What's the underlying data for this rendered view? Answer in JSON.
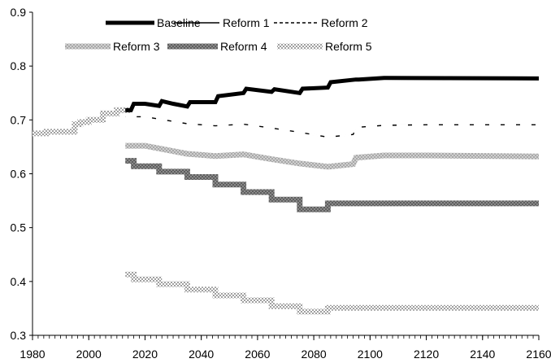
{
  "chart_data": {
    "type": "line",
    "xlim": [
      1980,
      2160
    ],
    "ylim": [
      0.3,
      0.9
    ],
    "x_ticks": [
      1980,
      2000,
      2020,
      2040,
      2060,
      2080,
      2100,
      2120,
      2140,
      2160
    ],
    "x_tick_labels": [
      "1980",
      "2000",
      "2020",
      "2040",
      "2060",
      "2080",
      "2100",
      "2120",
      "2140",
      "2160"
    ],
    "y_ticks": [
      0.3,
      0.4,
      0.5,
      0.6,
      0.7,
      0.8,
      0.9
    ],
    "y_tick_labels": [
      "0.3",
      "0.4",
      "0.5",
      "0.6",
      "0.7",
      "0.8",
      "0.9"
    ],
    "grid": false,
    "legend_position": "top",
    "series": [
      {
        "name": "Baseline",
        "style": "thick-solid",
        "color": "#000000",
        "x": [
          2013,
          2015,
          2016,
          2020,
          2025,
          2026,
          2030,
          2035,
          2036,
          2045,
          2046,
          2055,
          2056,
          2065,
          2066,
          2075,
          2076,
          2085,
          2086,
          2095,
          2096,
          2105,
          2106,
          2160
        ],
        "y": [
          0.718,
          0.718,
          0.73,
          0.73,
          0.726,
          0.735,
          0.73,
          0.725,
          0.733,
          0.733,
          0.744,
          0.75,
          0.758,
          0.752,
          0.757,
          0.75,
          0.758,
          0.76,
          0.77,
          0.775,
          0.775,
          0.778,
          0.778,
          0.777
        ]
      },
      {
        "name": "Reform 1",
        "style": "thin-solid",
        "color": "#000000",
        "x": [
          2013,
          2020,
          2035,
          2045,
          2055,
          2065,
          2075,
          2085,
          2094,
          2095,
          2105,
          2120,
          2160
        ],
        "y": [
          0.706,
          0.706,
          0.693,
          0.689,
          0.692,
          0.685,
          0.677,
          0.668,
          0.673,
          0.686,
          0.69,
          0.691,
          0.691
        ]
      },
      {
        "name": "Reform 2",
        "style": "dashed",
        "color": "#000000",
        "x": [
          2013,
          2020,
          2035,
          2045,
          2055,
          2065,
          2075,
          2085,
          2094,
          2095,
          2105,
          2120,
          2160
        ],
        "y": [
          0.706,
          0.706,
          0.693,
          0.689,
          0.692,
          0.685,
          0.677,
          0.668,
          0.673,
          0.686,
          0.69,
          0.691,
          0.691
        ]
      },
      {
        "name": "Reform 3",
        "style": "light-pattern",
        "color": "#c8c8c8",
        "x": [
          2013,
          2020,
          2035,
          2045,
          2055,
          2065,
          2075,
          2085,
          2094,
          2095,
          2105,
          2120,
          2160
        ],
        "y": [
          0.652,
          0.652,
          0.637,
          0.633,
          0.636,
          0.627,
          0.619,
          0.613,
          0.618,
          0.63,
          0.634,
          0.634,
          0.632
        ]
      },
      {
        "name": "Reform 4",
        "style": "dark-steps",
        "color": "#8a8a8a",
        "x": [
          2013,
          2016,
          2016,
          2025,
          2025,
          2035,
          2035,
          2045,
          2045,
          2055,
          2055,
          2065,
          2065,
          2075,
          2075,
          2085,
          2085,
          2094,
          2094,
          2160
        ],
        "y": [
          0.624,
          0.624,
          0.614,
          0.614,
          0.604,
          0.604,
          0.594,
          0.594,
          0.58,
          0.58,
          0.566,
          0.566,
          0.552,
          0.552,
          0.534,
          0.534,
          0.545,
          0.545,
          0.545,
          0.545
        ]
      },
      {
        "name": "Reform 5",
        "style": "dotted-steps",
        "color": "#b4b4b4",
        "x": [
          2013,
          2016,
          2016,
          2025,
          2025,
          2035,
          2035,
          2045,
          2045,
          2055,
          2055,
          2065,
          2065,
          2075,
          2075,
          2085,
          2085,
          2094,
          2094,
          2160
        ],
        "y": [
          0.413,
          0.413,
          0.404,
          0.404,
          0.395,
          0.395,
          0.385,
          0.385,
          0.374,
          0.374,
          0.365,
          0.365,
          0.354,
          0.354,
          0.344,
          0.344,
          0.351,
          0.351,
          0.351,
          0.351
        ]
      },
      {
        "name": "",
        "style": "historical-dotted",
        "color": "#aaaaaa",
        "x": [
          1980,
          1985,
          1985,
          1995,
          1995,
          1997,
          1997,
          2000,
          2000,
          2005,
          2005,
          2010,
          2010,
          2015
        ],
        "y": [
          0.675,
          0.675,
          0.678,
          0.678,
          0.692,
          0.692,
          0.696,
          0.696,
          0.7,
          0.7,
          0.712,
          0.712,
          0.718,
          0.718
        ]
      }
    ]
  }
}
